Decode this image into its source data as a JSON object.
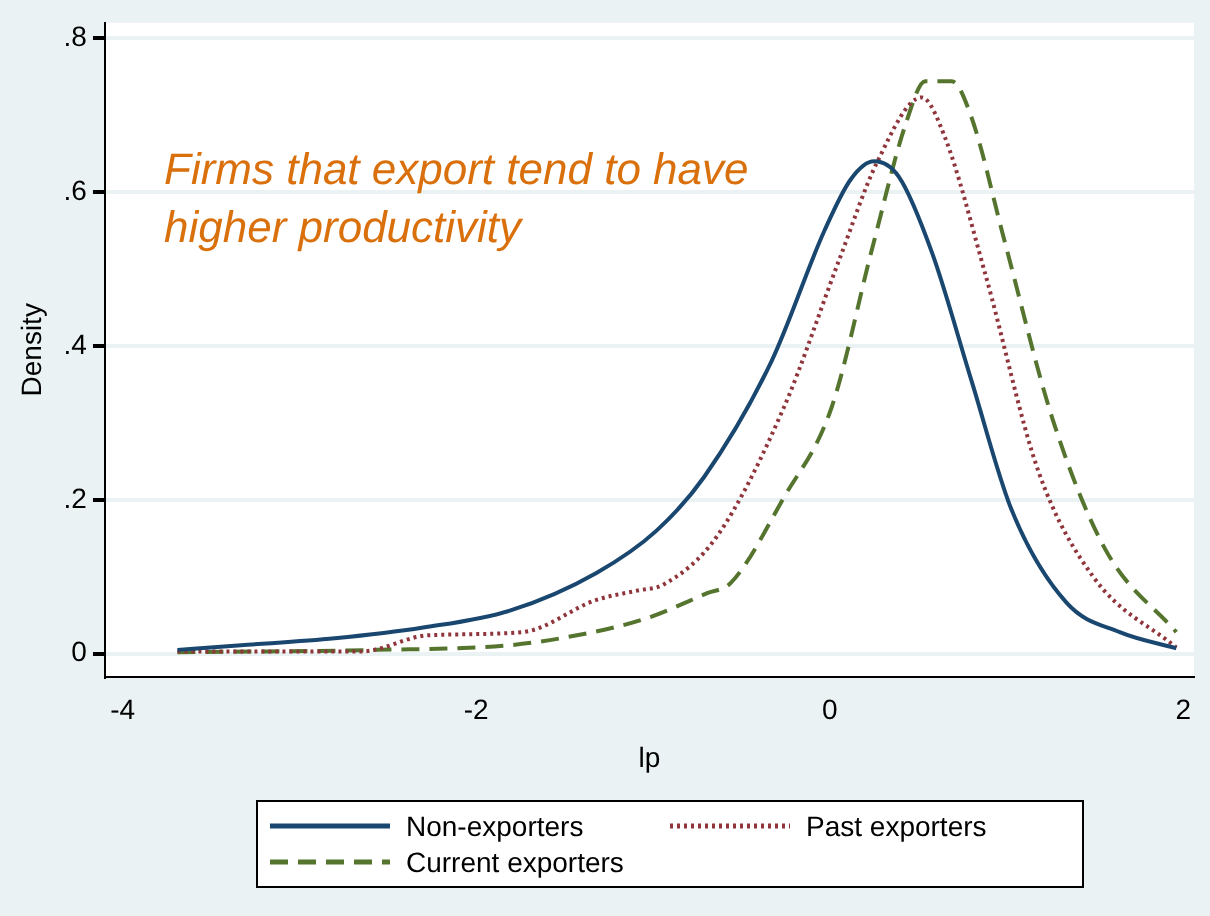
{
  "chart_data": {
    "type": "line",
    "xlabel": "lp",
    "ylabel": "Density",
    "annotations": [
      "Firms that export tend to have higher productivity"
    ],
    "xlim": [
      -4.1,
      2.06
    ],
    "xticks": [
      -4,
      -2,
      0,
      2
    ],
    "ylim": [
      -0.03,
      0.82
    ],
    "yticks": [
      {
        "value": 0,
        "label": "0"
      },
      {
        "value": 0.2,
        "label": ".2"
      },
      {
        "value": 0.4,
        "label": ".4"
      },
      {
        "value": 0.6,
        "label": ".6"
      },
      {
        "value": 0.8,
        "label": ".8"
      }
    ],
    "grid": "y",
    "legend": "bottom",
    "marker": "none",
    "series": [
      {
        "name": "Non-exporters",
        "color": "#1a476f",
        "line_style": "solid",
        "x": [
          -3.69,
          -3.33,
          -2.8,
          -2.3,
          -1.81,
          -1.32,
          -0.98,
          -0.71,
          -0.33,
          -0.03,
          0.12,
          0.25,
          0.39,
          0.58,
          0.8,
          1.03,
          1.34,
          1.64,
          1.96
        ],
        "values": [
          0.005,
          0.011,
          0.02,
          0.034,
          0.056,
          0.105,
          0.16,
          0.23,
          0.38,
          0.55,
          0.617,
          0.64,
          0.62,
          0.52,
          0.356,
          0.186,
          0.066,
          0.028,
          0.007
        ]
      },
      {
        "name": "Past exporters",
        "color": "#90353b",
        "line_style": "dotted",
        "x": [
          -3.69,
          -2.65,
          -2.27,
          -1.74,
          -1.32,
          -1.09,
          -0.94,
          -0.64,
          -0.26,
          0.05,
          0.27,
          0.52,
          0.65,
          0.88,
          1.18,
          1.49,
          1.96
        ],
        "values": [
          0.003,
          0.003,
          0.024,
          0.028,
          0.07,
          0.082,
          0.09,
          0.152,
          0.32,
          0.51,
          0.64,
          0.723,
          0.672,
          0.493,
          0.237,
          0.1,
          0.008
        ]
      },
      {
        "name": "Current exporters",
        "color": "#55752f",
        "line_style": "dashed",
        "x": [
          -3.69,
          -2.57,
          -1.81,
          -1.43,
          -1.05,
          -0.69,
          -0.56,
          -0.26,
          0.01,
          0.24,
          0.43,
          0.54,
          0.69,
          0.8,
          0.99,
          1.26,
          1.56,
          1.96
        ],
        "values": [
          0.002,
          0.005,
          0.011,
          0.024,
          0.045,
          0.079,
          0.092,
          0.203,
          0.32,
          0.527,
          0.689,
          0.744,
          0.744,
          0.698,
          0.535,
          0.305,
          0.135,
          0.028
        ]
      }
    ]
  }
}
